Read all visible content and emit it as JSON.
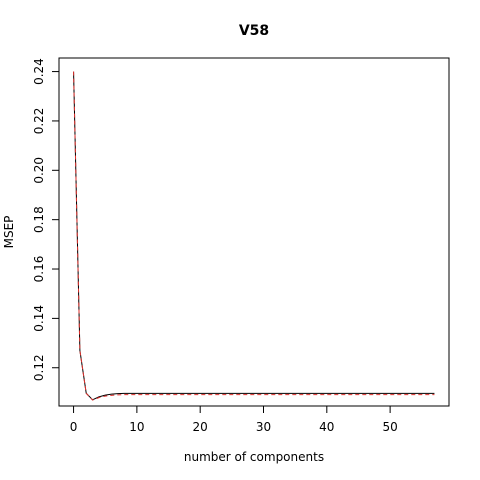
{
  "chart_data": {
    "type": "line",
    "title": "V58",
    "xlabel": "number of components",
    "ylabel": "MSEP",
    "xlim": [
      -2.3,
      59.3
    ],
    "ylim": [
      0.1045,
      0.2455
    ],
    "x_ticks": [
      0,
      10,
      20,
      30,
      40,
      50
    ],
    "y_ticks": [
      0.12,
      0.14,
      0.16,
      0.18,
      0.2,
      0.22,
      0.24
    ],
    "y_tick_labels": [
      "0.12",
      "0.14",
      "0.16",
      "0.18",
      "0.20",
      "0.22",
      "0.24"
    ],
    "grid": false,
    "legend": "none",
    "series": [
      {
        "color": "#000000",
        "dash": "solid",
        "x": [
          0,
          1,
          2,
          3,
          4,
          5,
          6,
          7,
          8,
          9,
          10,
          15,
          20,
          25,
          30,
          35,
          40,
          45,
          50,
          55,
          57
        ],
        "y": [
          0.24,
          0.127,
          0.1097,
          0.107,
          0.1082,
          0.1089,
          0.1093,
          0.1095,
          0.1096,
          0.1096,
          0.1096,
          0.1096,
          0.1096,
          0.1096,
          0.1096,
          0.1096,
          0.1096,
          0.1096,
          0.1096,
          0.1096,
          0.1096
        ]
      },
      {
        "color": "#e0302c",
        "dash": "dashed",
        "x": [
          0,
          1,
          2,
          3,
          4,
          5,
          6,
          7,
          8,
          9,
          10,
          15,
          20,
          25,
          30,
          35,
          40,
          45,
          50,
          55,
          57
        ],
        "y": [
          0.24,
          0.127,
          0.1096,
          0.1069,
          0.1079,
          0.1085,
          0.1088,
          0.109,
          0.1091,
          0.1091,
          0.1091,
          0.1091,
          0.1091,
          0.1091,
          0.1091,
          0.1091,
          0.1091,
          0.1091,
          0.1091,
          0.1091,
          0.1091
        ]
      }
    ]
  }
}
